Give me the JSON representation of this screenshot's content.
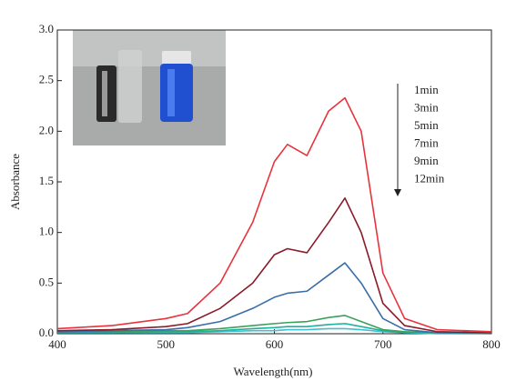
{
  "chart_data": {
    "type": "line",
    "x_label": "Wavelength(nm)",
    "y_label": "Absorbance",
    "x": [
      400,
      450,
      500,
      520,
      550,
      580,
      600,
      612,
      630,
      650,
      665,
      680,
      700,
      720,
      750,
      800
    ],
    "series": [
      {
        "name": "1min",
        "color": "#e8323c",
        "values": [
          0.05,
          0.08,
          0.15,
          0.2,
          0.5,
          1.1,
          1.7,
          1.87,
          1.76,
          2.2,
          2.33,
          2.0,
          0.6,
          0.15,
          0.04,
          0.02
        ]
      },
      {
        "name": "3min",
        "color": "#8b1a2a",
        "values": [
          0.03,
          0.04,
          0.07,
          0.1,
          0.25,
          0.5,
          0.78,
          0.84,
          0.8,
          1.1,
          1.34,
          1.0,
          0.3,
          0.08,
          0.02,
          0.01
        ]
      },
      {
        "name": "5min",
        "color": "#3a6ea8",
        "values": [
          0.02,
          0.03,
          0.04,
          0.06,
          0.12,
          0.25,
          0.36,
          0.4,
          0.42,
          0.58,
          0.7,
          0.5,
          0.15,
          0.04,
          0.01,
          0.01
        ]
      },
      {
        "name": "7min",
        "color": "#3aa05a",
        "values": [
          0.02,
          0.02,
          0.03,
          0.03,
          0.05,
          0.08,
          0.1,
          0.11,
          0.12,
          0.16,
          0.18,
          0.12,
          0.04,
          0.02,
          0.01,
          0.01
        ]
      },
      {
        "name": "9min",
        "color": "#20b0a0",
        "values": [
          0.01,
          0.01,
          0.02,
          0.02,
          0.03,
          0.05,
          0.06,
          0.07,
          0.07,
          0.09,
          0.1,
          0.07,
          0.03,
          0.01,
          0.01,
          0.0
        ]
      },
      {
        "name": "12min",
        "color": "#40c0d0",
        "values": [
          0.01,
          0.01,
          0.01,
          0.01,
          0.02,
          0.03,
          0.03,
          0.04,
          0.04,
          0.05,
          0.05,
          0.04,
          0.02,
          0.01,
          0.0,
          0.0
        ]
      }
    ],
    "xlim": [
      400,
      800
    ],
    "xticks": [
      400,
      500,
      600,
      700,
      800
    ],
    "ylim": [
      0,
      3.0
    ],
    "yticks": [
      {
        "value": 0,
        "label": "0.0"
      },
      {
        "value": 0.5,
        "label": "0.5"
      },
      {
        "value": 1.0,
        "label": "1.0"
      },
      {
        "value": 1.5,
        "label": "1.5"
      },
      {
        "value": 2.0,
        "label": "2.0"
      },
      {
        "value": 2.5,
        "label": "2.5"
      },
      {
        "value": 3.0,
        "label": "3.0"
      }
    ]
  }
}
